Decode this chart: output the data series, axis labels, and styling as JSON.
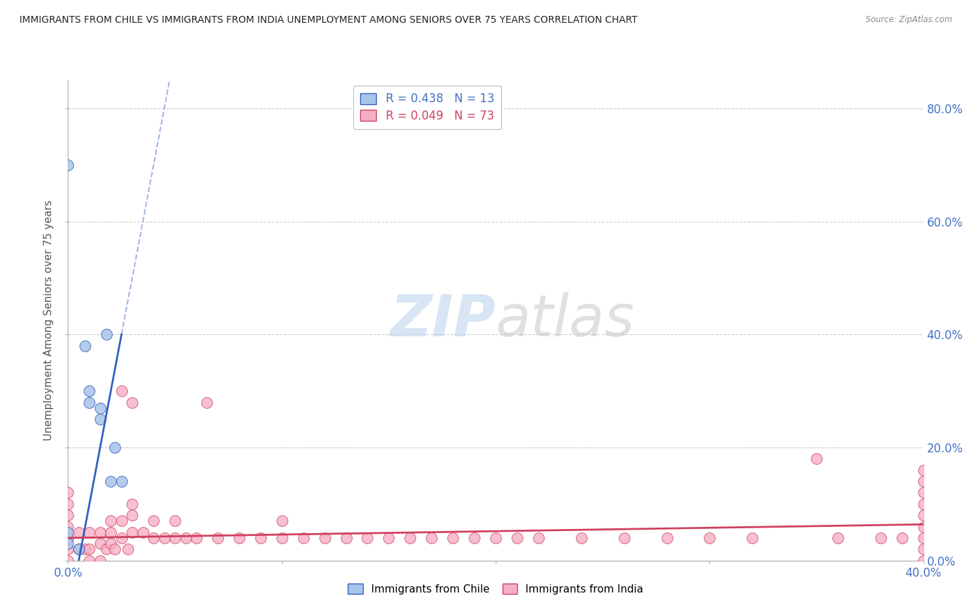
{
  "title": "IMMIGRANTS FROM CHILE VS IMMIGRANTS FROM INDIA UNEMPLOYMENT AMONG SENIORS OVER 75 YEARS CORRELATION CHART",
  "source": "Source: ZipAtlas.com",
  "ylabel": "Unemployment Among Seniors over 75 years",
  "yaxis_labels": [
    "0.0%",
    "20.0%",
    "40.0%",
    "60.0%",
    "80.0%"
  ],
  "yaxis_values": [
    0.0,
    0.2,
    0.4,
    0.6,
    0.8
  ],
  "xlim": [
    0.0,
    0.4
  ],
  "ylim": [
    0.0,
    0.85
  ],
  "chile_R": 0.438,
  "chile_N": 13,
  "india_R": 0.049,
  "india_N": 73,
  "chile_color": "#a8c4e8",
  "india_color": "#f5b0c5",
  "chile_line_color": "#3060c0",
  "india_line_color": "#d04060",
  "chile_scatter_x": [
    0.0,
    0.0,
    0.0,
    0.005,
    0.008,
    0.01,
    0.01,
    0.015,
    0.015,
    0.018,
    0.02,
    0.022,
    0.025
  ],
  "chile_scatter_y": [
    0.7,
    0.03,
    0.05,
    0.02,
    0.38,
    0.28,
    0.3,
    0.25,
    0.27,
    0.4,
    0.14,
    0.2,
    0.14
  ],
  "india_scatter_x": [
    0.0,
    0.0,
    0.0,
    0.0,
    0.0,
    0.0,
    0.0,
    0.005,
    0.005,
    0.008,
    0.01,
    0.01,
    0.01,
    0.015,
    0.015,
    0.015,
    0.018,
    0.02,
    0.02,
    0.02,
    0.022,
    0.025,
    0.025,
    0.025,
    0.028,
    0.03,
    0.03,
    0.03,
    0.03,
    0.035,
    0.04,
    0.04,
    0.045,
    0.05,
    0.05,
    0.055,
    0.06,
    0.065,
    0.07,
    0.08,
    0.09,
    0.1,
    0.1,
    0.11,
    0.12,
    0.13,
    0.14,
    0.15,
    0.16,
    0.17,
    0.18,
    0.19,
    0.2,
    0.21,
    0.22,
    0.24,
    0.26,
    0.28,
    0.3,
    0.32,
    0.35,
    0.36,
    0.38,
    0.39,
    0.4,
    0.4,
    0.4,
    0.4,
    0.4,
    0.4,
    0.4,
    0.4,
    0.4
  ],
  "india_scatter_y": [
    0.0,
    0.02,
    0.04,
    0.06,
    0.08,
    0.1,
    0.12,
    0.02,
    0.05,
    0.02,
    0.0,
    0.02,
    0.05,
    0.0,
    0.03,
    0.05,
    0.02,
    0.03,
    0.05,
    0.07,
    0.02,
    0.04,
    0.07,
    0.3,
    0.02,
    0.05,
    0.08,
    0.1,
    0.28,
    0.05,
    0.04,
    0.07,
    0.04,
    0.04,
    0.07,
    0.04,
    0.04,
    0.28,
    0.04,
    0.04,
    0.04,
    0.04,
    0.07,
    0.04,
    0.04,
    0.04,
    0.04,
    0.04,
    0.04,
    0.04,
    0.04,
    0.04,
    0.04,
    0.04,
    0.04,
    0.04,
    0.04,
    0.04,
    0.04,
    0.04,
    0.18,
    0.04,
    0.04,
    0.04,
    0.0,
    0.02,
    0.04,
    0.06,
    0.08,
    0.1,
    0.12,
    0.14,
    0.16
  ],
  "watermark_zip": "ZIP",
  "watermark_atlas": "atlas",
  "background_color": "#ffffff",
  "grid_color": "#cccccc"
}
